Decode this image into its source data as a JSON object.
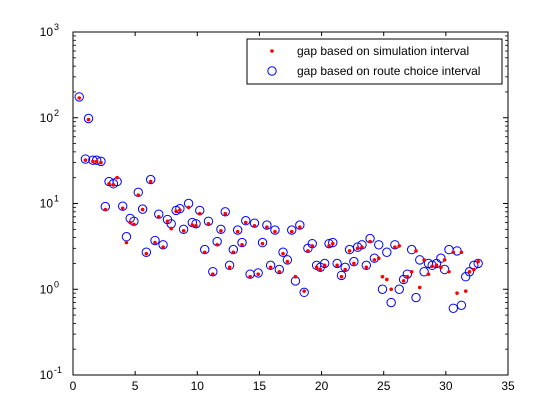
{
  "chart_data": {
    "type": "scatter",
    "title": "",
    "xlabel": "",
    "ylabel": "",
    "xlim": [
      0,
      35
    ],
    "ylim": [
      0.1,
      1000
    ],
    "yscale": "log",
    "grid": false,
    "legend_position": "top-right",
    "x_ticks": [
      0,
      5,
      10,
      15,
      20,
      25,
      30,
      35
    ],
    "y_ticks": [
      {
        "value": 0.1,
        "base": "10",
        "exp": "-1"
      },
      {
        "value": 1,
        "base": "10",
        "exp": "0"
      },
      {
        "value": 10,
        "base": "10",
        "exp": "1"
      },
      {
        "value": 100,
        "base": "10",
        "exp": "2"
      },
      {
        "value": 1000,
        "base": "10",
        "exp": "3"
      }
    ],
    "series": [
      {
        "name": "gap based on simulation interval",
        "marker": "dot",
        "color": "#ff0000",
        "points": [
          [
            0.5,
            170
          ],
          [
            1.0,
            32
          ],
          [
            1.25,
            95
          ],
          [
            1.6,
            31
          ],
          [
            1.9,
            31
          ],
          [
            2.25,
            30
          ],
          [
            2.6,
            8.5
          ],
          [
            2.9,
            17
          ],
          [
            3.25,
            16.5
          ],
          [
            3.55,
            20
          ],
          [
            4.0,
            8.8
          ],
          [
            4.3,
            3.5
          ],
          [
            4.6,
            6.0
          ],
          [
            4.9,
            5.7
          ],
          [
            5.25,
            12.5
          ],
          [
            5.6,
            8.5
          ],
          [
            5.9,
            2.6
          ],
          [
            6.25,
            18
          ],
          [
            6.6,
            3.5
          ],
          [
            6.9,
            7.0
          ],
          [
            7.25,
            3.1
          ],
          [
            7.6,
            6.2
          ],
          [
            7.9,
            5.1
          ],
          [
            8.3,
            8.1
          ],
          [
            8.6,
            8.4
          ],
          [
            8.9,
            4.8
          ],
          [
            9.3,
            9.0
          ],
          [
            9.6,
            5.6
          ],
          [
            9.9,
            5.5
          ],
          [
            10.2,
            7.6
          ],
          [
            10.6,
            2.7
          ],
          [
            10.9,
            5.8
          ],
          [
            11.25,
            1.5
          ],
          [
            11.6,
            3.3
          ],
          [
            11.9,
            4.8
          ],
          [
            12.25,
            7.6
          ],
          [
            12.6,
            1.8
          ],
          [
            12.9,
            2.7
          ],
          [
            13.25,
            4.7
          ],
          [
            13.6,
            3.3
          ],
          [
            13.9,
            6.0
          ],
          [
            14.25,
            1.4
          ],
          [
            14.6,
            5.5
          ],
          [
            14.9,
            1.5
          ],
          [
            15.25,
            3.4
          ],
          [
            15.6,
            5.3
          ],
          [
            15.9,
            1.8
          ],
          [
            16.25,
            4.7
          ],
          [
            16.6,
            1.6
          ],
          [
            16.9,
            2.6
          ],
          [
            17.25,
            2.1
          ],
          [
            17.6,
            4.7
          ],
          [
            17.9,
            1.4
          ],
          [
            18.25,
            5.3
          ],
          [
            18.6,
            0.95
          ],
          [
            18.9,
            2.8
          ],
          [
            19.25,
            3.2
          ],
          [
            19.6,
            1.8
          ],
          [
            19.9,
            1.7
          ],
          [
            20.25,
            1.9
          ],
          [
            20.6,
            3.2
          ],
          [
            20.9,
            3.4
          ],
          [
            21.25,
            1.9
          ],
          [
            21.6,
            1.4
          ],
          [
            21.9,
            1.7
          ],
          [
            22.25,
            2.8
          ],
          [
            22.6,
            2.0
          ],
          [
            22.9,
            3.0
          ],
          [
            23.25,
            3.1
          ],
          [
            23.6,
            1.8
          ],
          [
            23.9,
            3.6
          ],
          [
            24.25,
            2.2
          ],
          [
            24.6,
            2.3
          ],
          [
            24.9,
            1.4
          ],
          [
            25.25,
            1.3
          ],
          [
            25.6,
            1.0
          ],
          [
            25.9,
            3.1
          ],
          [
            26.25,
            3.2
          ],
          [
            26.6,
            1.25
          ],
          [
            26.9,
            1.4
          ],
          [
            27.25,
            1.6
          ],
          [
            27.6,
            2.8
          ],
          [
            27.9,
            1.05
          ],
          [
            28.25,
            2.2
          ],
          [
            28.6,
            1.5
          ],
          [
            28.9,
            1.85
          ],
          [
            29.25,
            1.9
          ],
          [
            29.6,
            1.8
          ],
          [
            29.9,
            2.2
          ],
          [
            30.25,
            1.6
          ],
          [
            30.6,
            2.7
          ],
          [
            30.9,
            0.9
          ],
          [
            31.25,
            2.7
          ],
          [
            31.6,
            0.95
          ],
          [
            31.9,
            1.6
          ],
          [
            32.25,
            1.7
          ],
          [
            32.6,
            2.1
          ]
        ]
      },
      {
        "name": "gap based on route choice interval",
        "marker": "circle",
        "color": "#0000ff",
        "points": [
          [
            0.5,
            175
          ],
          [
            1.0,
            33
          ],
          [
            1.25,
            98
          ],
          [
            1.6,
            32
          ],
          [
            1.9,
            32
          ],
          [
            2.25,
            31
          ],
          [
            2.6,
            9.2
          ],
          [
            2.9,
            18
          ],
          [
            3.25,
            17
          ],
          [
            3.55,
            18
          ],
          [
            4.0,
            9.3
          ],
          [
            4.3,
            4.1
          ],
          [
            4.6,
            6.7
          ],
          [
            4.9,
            6.2
          ],
          [
            5.25,
            13.5
          ],
          [
            5.6,
            8.6
          ],
          [
            5.9,
            2.7
          ],
          [
            6.25,
            19
          ],
          [
            6.6,
            3.7
          ],
          [
            6.9,
            7.5
          ],
          [
            7.25,
            3.3
          ],
          [
            7.6,
            6.5
          ],
          [
            7.9,
            5.8
          ],
          [
            8.3,
            8.3
          ],
          [
            8.6,
            8.7
          ],
          [
            8.9,
            5.0
          ],
          [
            9.3,
            10
          ],
          [
            9.6,
            6.0
          ],
          [
            9.9,
            5.8
          ],
          [
            10.2,
            8.3
          ],
          [
            10.6,
            2.9
          ],
          [
            10.9,
            6.2
          ],
          [
            11.25,
            1.6
          ],
          [
            11.6,
            3.6
          ],
          [
            11.9,
            5.0
          ],
          [
            12.25,
            8.0
          ],
          [
            12.6,
            1.9
          ],
          [
            12.9,
            2.9
          ],
          [
            13.25,
            4.9
          ],
          [
            13.6,
            3.5
          ],
          [
            13.9,
            6.3
          ],
          [
            14.25,
            1.5
          ],
          [
            14.6,
            5.9
          ],
          [
            14.9,
            1.55
          ],
          [
            15.25,
            3.5
          ],
          [
            15.6,
            5.6
          ],
          [
            15.9,
            1.9
          ],
          [
            16.25,
            4.9
          ],
          [
            16.6,
            1.7
          ],
          [
            16.9,
            2.7
          ],
          [
            17.25,
            2.2
          ],
          [
            17.6,
            4.9
          ],
          [
            17.9,
            1.25
          ],
          [
            18.25,
            5.6
          ],
          [
            18.6,
            0.92
          ],
          [
            18.9,
            3.0
          ],
          [
            19.25,
            3.4
          ],
          [
            19.6,
            1.9
          ],
          [
            19.9,
            1.8
          ],
          [
            20.25,
            2.0
          ],
          [
            20.6,
            3.4
          ],
          [
            20.9,
            3.5
          ],
          [
            21.25,
            2.0
          ],
          [
            21.6,
            1.45
          ],
          [
            21.9,
            1.8
          ],
          [
            22.25,
            2.9
          ],
          [
            22.6,
            2.1
          ],
          [
            22.9,
            3.1
          ],
          [
            23.25,
            3.3
          ],
          [
            23.6,
            1.9
          ],
          [
            23.9,
            3.9
          ],
          [
            24.25,
            2.3
          ],
          [
            24.6,
            3.3
          ],
          [
            24.9,
            1.0
          ],
          [
            25.25,
            2.7
          ],
          [
            25.6,
            0.7
          ],
          [
            25.9,
            3.3
          ],
          [
            26.25,
            1.0
          ],
          [
            26.6,
            1.3
          ],
          [
            26.9,
            1.5
          ],
          [
            27.25,
            2.9
          ],
          [
            27.6,
            0.8
          ],
          [
            27.9,
            2.2
          ],
          [
            28.25,
            1.6
          ],
          [
            28.6,
            2.0
          ],
          [
            28.9,
            1.9
          ],
          [
            29.25,
            2.0
          ],
          [
            29.6,
            2.3
          ],
          [
            29.9,
            1.7
          ],
          [
            30.25,
            2.9
          ],
          [
            30.6,
            0.6
          ],
          [
            30.9,
            2.8
          ],
          [
            31.25,
            0.65
          ],
          [
            31.6,
            1.4
          ],
          [
            31.9,
            1.6
          ],
          [
            32.25,
            1.9
          ],
          [
            32.6,
            2.0
          ]
        ]
      }
    ]
  }
}
